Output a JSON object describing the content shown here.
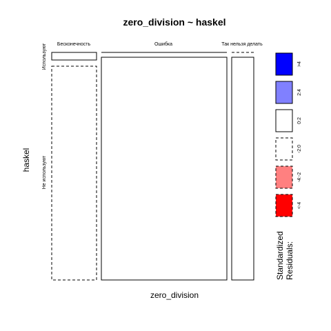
{
  "chart_data": {
    "type": "mosaic",
    "title": "zero_division ~ haskel",
    "xlabel": "zero_division",
    "ylabel": "haskel",
    "x_categories": [
      "Бесконечность",
      "Ошибка",
      "Так нельзя делать"
    ],
    "y_categories": [
      "Используют",
      "Не используют"
    ],
    "cells": [
      {
        "x": "Бесконечность",
        "y": "Используют",
        "residual_band": "0:2"
      },
      {
        "x": "Бесконечность",
        "y": "Не используют",
        "residual_band": "-2:0"
      },
      {
        "x": "Ошибка",
        "y": "Используют",
        "residual_band": "0:2"
      },
      {
        "x": "Ошибка",
        "y": "Не используют",
        "residual_band": "0:2"
      },
      {
        "x": "Так нельзя делать",
        "y": "Используют",
        "residual_band": "-2:0"
      },
      {
        "x": "Так нельзя делать",
        "y": "Не используют",
        "residual_band": "0:2"
      }
    ],
    "legend": {
      "title_line1": "Standardized",
      "title_line2": "Residuals:",
      "placement": "right",
      "items": [
        {
          "label": ">4",
          "color": "#0000ff",
          "border": "solid"
        },
        {
          "label": "2:4",
          "color": "#8080ff",
          "border": "solid"
        },
        {
          "label": "0:2",
          "color": "#ffffff",
          "border": "solid"
        },
        {
          "label": "-2:0",
          "color": "#ffffff",
          "border": "dashed"
        },
        {
          "label": "-4:-2",
          "color": "#ff8080",
          "border": "dashed"
        },
        {
          "label": "<-4",
          "color": "#ff0000",
          "border": "dashed"
        }
      ]
    }
  }
}
